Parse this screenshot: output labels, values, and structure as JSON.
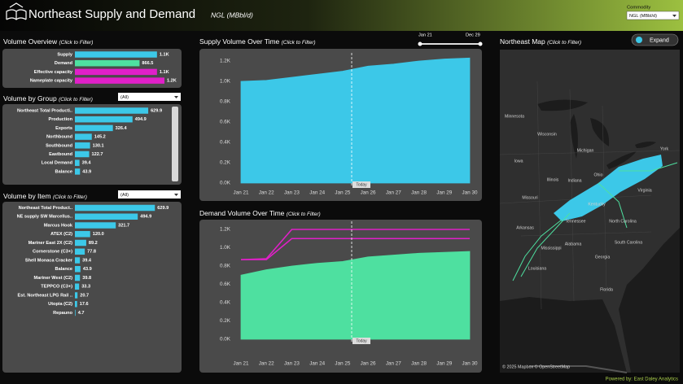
{
  "header": {
    "title": "Northeast Supply and Demand",
    "subtitle": "NGL (MBbl/d)"
  },
  "commodity": {
    "label": "Commodity",
    "value": "NGL (MBbl/d)"
  },
  "footer": "Powered by: East Daley Analytics",
  "volume_overview": {
    "title": "Volume Overview",
    "hint": "(Click to Filter)",
    "categories": [
      "Supply",
      "Demand",
      "Effective capacity",
      "Nameplate capacity"
    ],
    "values": [
      1100,
      866.5,
      1100,
      1200
    ],
    "value_labels": [
      "1.1K",
      "866.5",
      "1.1K",
      "1.2K"
    ],
    "colors": [
      "#3cc8e8",
      "#4ee0a0",
      "#e020c8",
      "#e020c8"
    ]
  },
  "volume_by_group": {
    "title": "Volume by Group",
    "hint": "(Click to Filter)",
    "filter": "(All)",
    "categories": [
      "Northeast Total Producti..",
      "Production",
      "Exports",
      "Northbound",
      "Southbound",
      "Eastbound",
      "Local Demand",
      "Balance"
    ],
    "values": [
      629.9,
      494.9,
      326.4,
      145.2,
      130.1,
      122.7,
      39.4,
      43.9
    ],
    "color": "#3cc8e8"
  },
  "volume_by_item": {
    "title": "Volume by Item",
    "hint": "(Click to Filter)",
    "filter": "(All)",
    "categories": [
      "Northeast Total Product..",
      "NE supply SW Marcellus..",
      "Marcus Hook",
      "ATEX (C2)",
      "Mariner East 2X (C2)",
      "Cornerstone (C3+)",
      "Shell Monaca Cracker",
      "Balance",
      "Mariner West (C2)",
      "TEPPCO (C3+)",
      "Est. Northeast LPG Rail ..",
      "Utopia (C2)",
      "Repauno"
    ],
    "values": [
      629.9,
      494.9,
      321.7,
      120.0,
      89.2,
      77.8,
      39.4,
      43.9,
      39.8,
      33.3,
      20.7,
      17.6,
      4.7
    ],
    "value_labels": [
      "629.9",
      "494.9",
      "321.7",
      "120.0",
      "89.2",
      "77.8",
      "39.4",
      "43.9",
      "39.8",
      "33.3",
      "20.7",
      "17.6",
      "4.7"
    ],
    "color": "#3cc8e8"
  },
  "date_slider": {
    "start": "Jan 21",
    "end": "Dec 29"
  },
  "supply_chart": {
    "type": "area",
    "title": "Supply Volume Over Time",
    "hint": "(Click to Filter)",
    "categories": [
      "Jan 21",
      "Jan 22",
      "Jan 23",
      "Jan 24",
      "Jan 25",
      "Jan 26",
      "Jan 27",
      "Jan 28",
      "Jan 29",
      "Jan 30"
    ],
    "values": [
      1000,
      1010,
      1040,
      1070,
      1100,
      1150,
      1170,
      1200,
      1220,
      1230
    ],
    "color": "#3cc8e8",
    "ylim": [
      0,
      1200
    ],
    "yticks": [
      {
        "value": 0,
        "label": "0.0K"
      },
      {
        "value": 200,
        "label": "0.2K"
      },
      {
        "value": 400,
        "label": "0.4K"
      },
      {
        "value": 600,
        "label": "0.6K"
      },
      {
        "value": 800,
        "label": "0.8K"
      },
      {
        "value": 1000,
        "label": "1.0K"
      },
      {
        "value": 1200,
        "label": "1.2K"
      }
    ],
    "today_label": "Today"
  },
  "demand_chart": {
    "type": "area",
    "title": "Demand Volume Over Time",
    "hint": "(Click to Filter)",
    "categories": [
      "Jan 21",
      "Jan 22",
      "Jan 23",
      "Jan 24",
      "Jan 25",
      "Jan 26",
      "Jan 27",
      "Jan 28",
      "Jan 29",
      "Jan 30"
    ],
    "values": [
      700,
      760,
      800,
      830,
      850,
      900,
      920,
      940,
      950,
      960
    ],
    "color": "#4ee0a0",
    "lines": [
      {
        "color": "#e020c8",
        "values": [
          870,
          880,
          1200,
          1200,
          1200,
          1200,
          1200,
          1200,
          1200,
          1200
        ]
      },
      {
        "color": "#e020c8",
        "values": [
          870,
          870,
          1100,
          1100,
          1100,
          1100,
          1100,
          1100,
          1100,
          1100
        ]
      }
    ],
    "ylim": [
      0,
      1200
    ],
    "yticks": [
      {
        "value": 0,
        "label": "0.0K"
      },
      {
        "value": 200,
        "label": "0.2K"
      },
      {
        "value": 400,
        "label": "0.4K"
      },
      {
        "value": 600,
        "label": "0.6K"
      },
      {
        "value": 800,
        "label": "0.8K"
      },
      {
        "value": 1000,
        "label": "1.0K"
      },
      {
        "value": 1200,
        "label": "1.2K"
      }
    ],
    "today_label": "Today"
  },
  "map": {
    "title": "Northeast Map",
    "hint": "(Click to Filter)",
    "expand": "Expand",
    "labels": [
      "Minnesota",
      "Wisconsin",
      "Michigan",
      "Iowa",
      "Illinois",
      "Indiana",
      "Ohio",
      "Missouri",
      "Kentucky",
      "Virginia",
      "Tennessee",
      "North Carolina",
      "Arkansas",
      "South Carolina",
      "Mississippi",
      "Alabama",
      "Georgia",
      "Louisiana",
      "Florida",
      "York"
    ],
    "credit": "© 2025 Mapbox © OpenStreetMap"
  }
}
